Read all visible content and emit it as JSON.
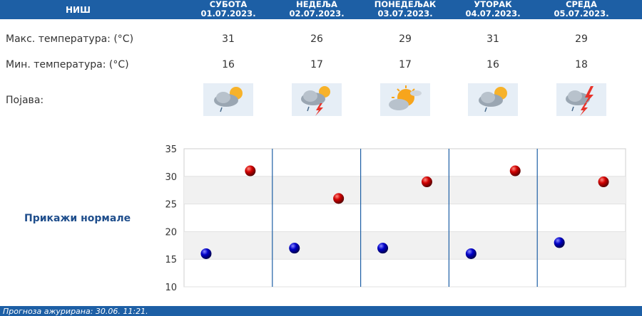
{
  "header": {
    "city": "НИШ",
    "days": [
      {
        "name": "СУБОТА",
        "date": "01.07.2023."
      },
      {
        "name": "НЕДЕЉА",
        "date": "02.07.2023."
      },
      {
        "name": "ПОНЕДЕЉАК",
        "date": "03.07.2023."
      },
      {
        "name": "УТОРАК",
        "date": "04.07.2023."
      },
      {
        "name": "СРЕДА",
        "date": "05.07.2023."
      }
    ]
  },
  "rows": {
    "max_label": "Макс. температура: (°C)",
    "min_label": "Мин. температура: (°C)",
    "phenomenon_label": "Појава:",
    "max_values": [
      "31",
      "26",
      "29",
      "31",
      "29"
    ],
    "min_values": [
      "16",
      "17",
      "17",
      "16",
      "18"
    ],
    "icons": [
      "cloud-sun-rain-icon",
      "thunderstorm-icon",
      "sun-cloud-icon",
      "cloud-sun-rain-icon",
      "thunderstorm-icon"
    ]
  },
  "normals_link": "Прикажи нормале",
  "footer": {
    "updated": "Прогноза ажурирана:  30.06.  11:21."
  },
  "colors": {
    "header_bg": "#1d5fa5",
    "max_point": "#cc0000",
    "min_point": "#0000b0",
    "link": "#1f4e8c"
  },
  "chart_data": {
    "type": "scatter",
    "categories": [
      "СУБОТА",
      "НЕДЕЉА",
      "ПОНЕДЕЉАК",
      "УТОРАК",
      "СРЕДА"
    ],
    "series": [
      {
        "values": [
          31,
          26,
          29,
          31,
          29
        ],
        "color": "#cc0000"
      },
      {
        "values": [
          16,
          17,
          17,
          16,
          18
        ],
        "color": "#0000b0"
      }
    ],
    "ylim": [
      10,
      35
    ],
    "yticks": [
      "10",
      "15",
      "20",
      "25",
      "30",
      "35"
    ],
    "grid": true
  }
}
